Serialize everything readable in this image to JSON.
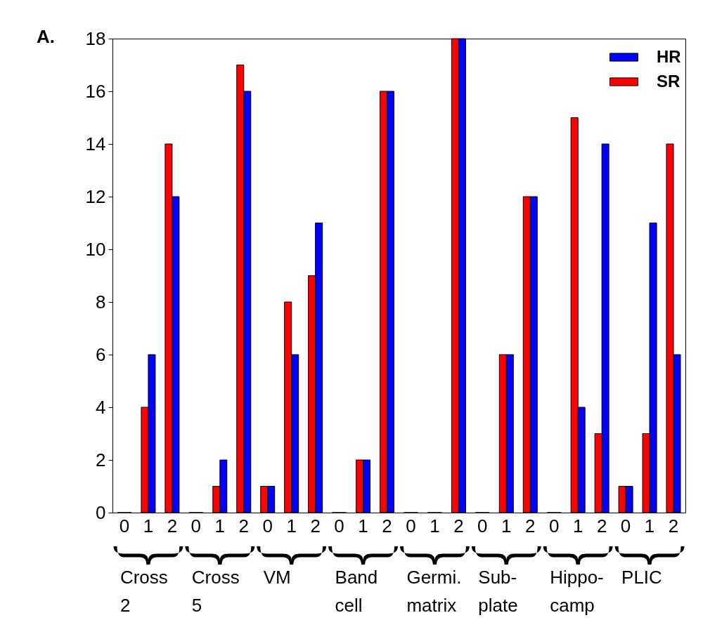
{
  "chart_data": {
    "type": "bar",
    "title": "A.",
    "categories": [
      "0",
      "1",
      "2",
      "0",
      "1",
      "2",
      "0",
      "1",
      "2",
      "0",
      "1",
      "2",
      "0",
      "1",
      "2",
      "0",
      "1",
      "2",
      "0",
      "1",
      "2",
      "0",
      "1",
      "2"
    ],
    "series": [
      {
        "name": "HR",
        "color": "#0000ff",
        "values": [
          0,
          6,
          12,
          0,
          2,
          16,
          1,
          6,
          11,
          0,
          2,
          16,
          0,
          0,
          18,
          0,
          6,
          12,
          0,
          4,
          14,
          1,
          11,
          6
        ]
      },
      {
        "name": "SR",
        "color": "#ff0000",
        "values": [
          0,
          4,
          14,
          0,
          1,
          17,
          1,
          8,
          9,
          0,
          2,
          16,
          0,
          0,
          18,
          0,
          6,
          12,
          0,
          15,
          3,
          1,
          3,
          14
        ]
      }
    ],
    "annotations": [
      "Cross\n2",
      "Cross\n5",
      "VM",
      "Band\ncell",
      "Germi.\nmatrix",
      "Sub-\nplate",
      "Hippo-\ncamp",
      "PLIC"
    ],
    "ylim": [
      0,
      18
    ],
    "yticks": [
      0,
      2,
      4,
      6,
      8,
      10,
      12,
      14,
      16,
      18
    ],
    "legend": "top right",
    "grid": false
  }
}
